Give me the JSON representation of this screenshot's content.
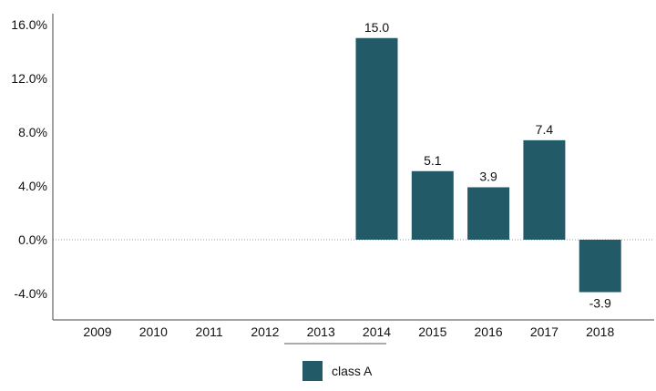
{
  "chart_data": {
    "type": "bar",
    "categories": [
      "2009",
      "2010",
      "2011",
      "2012",
      "2013",
      "2014",
      "2015",
      "2016",
      "2017",
      "2018"
    ],
    "series": [
      {
        "name": "class A",
        "values": [
          null,
          null,
          null,
          null,
          null,
          15.0,
          5.1,
          3.9,
          7.4,
          -3.9
        ],
        "value_labels": [
          "",
          "",
          "",
          "",
          "",
          "15.0",
          "5.1",
          "3.9",
          "7.4",
          "-3.9"
        ]
      }
    ],
    "y_ticks": [
      "16.0%",
      "12.0%",
      "8.0%",
      "4.0%",
      "0.0%",
      "-4.0%"
    ],
    "ylim": [
      -6,
      16
    ],
    "zero_line": "dotted",
    "grid": false,
    "legend_position": "bottom-center",
    "title": "",
    "xlabel": "",
    "ylabel": "",
    "colors": {
      "bar": "#225a68",
      "axis": "#444444",
      "zero_line": "#999999"
    }
  }
}
